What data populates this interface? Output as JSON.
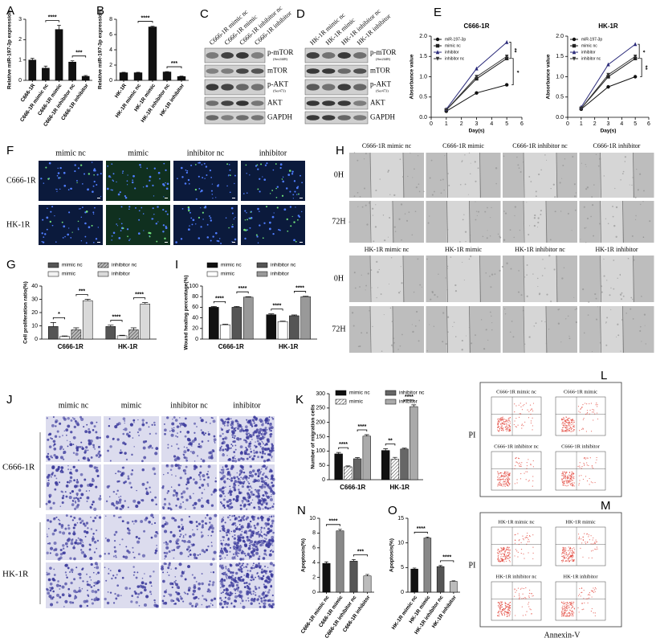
{
  "chart_data": [
    {
      "panel": "A",
      "type": "bar",
      "y_label": "Relative miR-197-3p expression",
      "categories": [
        "C666-1R",
        "C666-1R mimic nc",
        "C666-1R mimic",
        "C666-1R inhibitor nc",
        "C666-1R inhibitor"
      ],
      "values": [
        1.0,
        0.6,
        2.5,
        0.9,
        0.2
      ],
      "errors": [
        0.08,
        0.1,
        0.2,
        0.06,
        0.04
      ],
      "color": "#111111",
      "ylim": [
        0,
        3
      ],
      "yticks": [
        0,
        1,
        2,
        3
      ],
      "annotations": [
        "****",
        "***"
      ]
    },
    {
      "panel": "B",
      "type": "bar",
      "y_label": "Relative miR-197-3p expression",
      "categories": [
        "HK-1R",
        "HK-1R mimic nc",
        "HK-1R mimic",
        "HK-1R inhibitor nc",
        "HK-1R inhibitor"
      ],
      "values": [
        1.0,
        1.0,
        7.0,
        1.1,
        0.5
      ],
      "errors": [
        0.05,
        0.05,
        0.1,
        0.05,
        0.05
      ],
      "color": "#111111",
      "ylim": [
        0,
        8
      ],
      "yticks": [
        0,
        2,
        4,
        6,
        8
      ],
      "annotations": [
        "****",
        "***"
      ]
    },
    {
      "panel": "E",
      "type": "line",
      "title": "C666-1R",
      "x_label": "Day(s)",
      "y_label": "Absorbance value",
      "x": [
        1,
        3,
        5
      ],
      "xlim": [
        0,
        6
      ],
      "xticks": [
        0,
        1,
        2,
        3,
        4,
        5,
        6
      ],
      "ylim": [
        0,
        2
      ],
      "yticks": [
        {
          "value": 0,
          "label": "0.0"
        },
        {
          "value": 0.5,
          "label": "0.5"
        },
        {
          "value": 1,
          "label": "1.0"
        },
        {
          "value": 1.5,
          "label": "1.5"
        },
        {
          "value": 2,
          "label": "2.0"
        }
      ],
      "series": [
        {
          "name": "miR-197-3p",
          "color": "#111111",
          "marker": "circle",
          "values": [
            0.15,
            0.6,
            0.8
          ]
        },
        {
          "name": "mimic nc",
          "color": "#222222",
          "marker": "square",
          "values": [
            0.18,
            0.95,
            1.45
          ]
        },
        {
          "name": "inhibitor",
          "color": "#2b2b7a",
          "marker": "triangle",
          "values": [
            0.2,
            1.2,
            1.85
          ]
        },
        {
          "name": "inhibitor nc",
          "color": "#333333",
          "marker": "triangle-down",
          "values": [
            0.18,
            1.0,
            1.5
          ]
        }
      ],
      "annotations": [
        "**",
        "*"
      ]
    },
    {
      "type": "line",
      "title": "HK-1R",
      "x_label": "Day(s)",
      "y_label": "Absorbance value",
      "x": [
        1,
        3,
        5
      ],
      "xlim": [
        0,
        6
      ],
      "xticks": [
        0,
        1,
        2,
        3,
        4,
        5,
        6
      ],
      "ylim": [
        0,
        2
      ],
      "yticks": [
        {
          "value": 0,
          "label": "0.0"
        },
        {
          "value": 0.5,
          "label": "0.5"
        },
        {
          "value": 1,
          "label": "1.0"
        },
        {
          "value": 1.5,
          "label": "1.5"
        },
        {
          "value": 2,
          "label": "2.0"
        }
      ],
      "series": [
        {
          "name": "miR-197-3p",
          "color": "#111111",
          "marker": "circle",
          "values": [
            0.2,
            0.75,
            1.0
          ]
        },
        {
          "name": "mimic nc",
          "color": "#222222",
          "marker": "square",
          "values": [
            0.22,
            1.0,
            1.45
          ]
        },
        {
          "name": "inhibitor",
          "color": "#2b2b7a",
          "marker": "triangle",
          "values": [
            0.25,
            1.3,
            1.8
          ]
        },
        {
          "name": "inhibitor nc",
          "color": "#333333",
          "marker": "triangle-down",
          "values": [
            0.22,
            1.05,
            1.5
          ]
        }
      ],
      "annotations": [
        "*",
        "**"
      ]
    },
    {
      "panel": "G",
      "type": "grouped_bar",
      "y_label": "Cell proliferation ratio(%)",
      "categories": [
        "C666-1R",
        "HK-1R"
      ],
      "series": [
        {
          "name": "mimic nc",
          "color": "#555555",
          "values": [
            9.5,
            9.5
          ],
          "errors": [
            3,
            1
          ]
        },
        {
          "name": "mimic",
          "color": "#f2f2f2",
          "values": [
            2,
            2.5
          ],
          "errors": [
            0.4,
            0.4
          ]
        },
        {
          "name": "inhibitor nc",
          "color": "#bbbbbb",
          "hatch": true,
          "values": [
            7,
            7
          ],
          "errors": [
            1.5,
            1.5
          ]
        },
        {
          "name": "inhibitor",
          "color": "#d9d9d9",
          "values": [
            29,
            26.5
          ],
          "errors": [
            1,
            1
          ]
        }
      ],
      "ylim": [
        0,
        40
      ],
      "yticks": [
        0,
        10,
        20,
        30,
        40
      ],
      "annotations": [
        "*",
        "***",
        "****",
        "****"
      ]
    },
    {
      "panel": "I",
      "type": "grouped_bar",
      "y_label": "Wound healing percentage(%)",
      "categories": [
        "C666-1R",
        "HK-1R"
      ],
      "series": [
        {
          "name": "mimic nc",
          "color": "#111111",
          "values": [
            60,
            46
          ],
          "errors": [
            1.5,
            1.5
          ]
        },
        {
          "name": "mimic",
          "color": "#ffffff",
          "values": [
            27,
            33
          ],
          "errors": [
            1,
            1
          ]
        },
        {
          "name": "inhibitor nc",
          "color": "#555555",
          "values": [
            60,
            44
          ],
          "errors": [
            1.5,
            1.5
          ]
        },
        {
          "name": "inhibitor",
          "color": "#999999",
          "values": [
            79,
            80
          ],
          "errors": [
            1,
            1
          ]
        }
      ],
      "ylim": [
        0,
        100
      ],
      "yticks": [
        0,
        20,
        40,
        60,
        80,
        100
      ],
      "annotations": [
        "****",
        "****",
        "****",
        "****"
      ]
    },
    {
      "panel": "K",
      "type": "grouped_bar",
      "y_label": "Number of migration cells",
      "categories": [
        "C666-1R",
        "HK-1R"
      ],
      "series": [
        {
          "name": "mimic nc",
          "color": "#111111",
          "values": [
            90,
            102
          ],
          "errors": [
            5,
            6
          ]
        },
        {
          "name": "mimic",
          "color": "#ffffff",
          "hatch": true,
          "values": [
            45,
            72
          ],
          "errors": [
            3,
            6
          ]
        },
        {
          "name": "inhibitor nc",
          "color": "#666666",
          "values": [
            73,
            107
          ],
          "errors": [
            4,
            3
          ]
        },
        {
          "name": "inhibitor",
          "color": "#aaaaaa",
          "values": [
            152,
            255
          ],
          "errors": [
            5,
            6
          ]
        }
      ],
      "ylim": [
        0,
        300
      ],
      "yticks": [
        0,
        50,
        100,
        150,
        200,
        250,
        300
      ],
      "annotations": [
        "****",
        "****",
        "**",
        "****"
      ]
    },
    {
      "panel": "N",
      "type": "bar",
      "y_label": "Apoptosis(%)",
      "categories": [
        "C666-1R mimic nc",
        "C666-1R mimic",
        "C666-1R inhibitor nc",
        "C666-1R inhibitor"
      ],
      "values": [
        3.9,
        8.3,
        4.2,
        2.2
      ],
      "errors": [
        0.2,
        0.2,
        0.2,
        0.2
      ],
      "colors": [
        "#111111",
        "#888888",
        "#555555",
        "#bbbbbb"
      ],
      "ylim": [
        0,
        10
      ],
      "yticks": [
        0,
        2,
        4,
        6,
        8,
        10
      ],
      "annotations": [
        "****",
        "***"
      ]
    },
    {
      "panel": "O",
      "type": "bar",
      "y_label": "Apoptosis(%)",
      "categories": [
        "HK-1R mimic nc",
        "HK-1R mimic",
        "HK-1R inhibitor nc",
        "HK-1R inhibitor"
      ],
      "values": [
        4.7,
        11.0,
        5.2,
        2.2
      ],
      "errors": [
        0.2,
        0.2,
        0.2,
        0.1
      ],
      "colors": [
        "#111111",
        "#888888",
        "#555555",
        "#bbbbbb"
      ],
      "ylim": [
        0,
        15
      ],
      "yticks": [
        0,
        5,
        10,
        15
      ],
      "annotations": [
        "****",
        "****"
      ]
    }
  ],
  "figure": {
    "C": {
      "letter": "C",
      "lanes": [
        "C666-1R mimic nc",
        "C666-1R mimic",
        "C666-1R inhibitor nc",
        "C666-1R inhibitor"
      ],
      "bands": [
        {
          "name": "p-mTOR",
          "site": "(Ser2448)"
        },
        {
          "name": "mTOR"
        },
        {
          "name": "p-AKT",
          "site": "(Ser473)"
        },
        {
          "name": "AKT"
        },
        {
          "name": "GAPDH"
        }
      ]
    },
    "D": {
      "letter": "D",
      "lanes": [
        "HK-1R mimic nc",
        "HK-1R mimic",
        "HK-1R inhibitor nc",
        "HK-1R inhibitor"
      ],
      "bands": [
        {
          "name": "p-mTOR",
          "site": "(Ser2448)"
        },
        {
          "name": "mTOR"
        },
        {
          "name": "p-AKT",
          "site": "(Ser473)"
        },
        {
          "name": "AKT"
        },
        {
          "name": "GAPDH"
        }
      ]
    },
    "F": {
      "letter": "F",
      "columns": [
        "mimic nc",
        "mimic",
        "inhibitor nc",
        "inhibitor"
      ],
      "rows": [
        "C666-1R",
        "HK-1R"
      ]
    },
    "H": {
      "letter": "H",
      "sets": [
        {
          "columns": [
            "C666-1R mimic nc",
            "C666-1R mimic",
            "C666-1R inhibitor nc",
            "C666-1R inhibitor"
          ],
          "rows": [
            "0H",
            "72H"
          ]
        },
        {
          "columns": [
            "HK-1R mimic nc",
            "HK-1R mimic",
            "HK-1R inhibitor nc",
            "HK-1R inhibitor"
          ],
          "rows": [
            "0H",
            "72H"
          ]
        }
      ]
    },
    "J": {
      "letter": "J",
      "columns": [
        "mimic nc",
        "mimic",
        "inhibitor nc",
        "inhibitor"
      ],
      "rows": [
        "C666-1R",
        "HK-1R"
      ]
    },
    "L": {
      "letter": "L",
      "plots": [
        "C666-1R mimic nc",
        "C666-1R mimic",
        "C666-1R inhibitor nc",
        "C666-1R inhibitor"
      ],
      "y_label": "PI"
    },
    "M": {
      "letter": "M",
      "plots": [
        "HK-1R mimic nc",
        "HK-1R mimic",
        "HK-1R inhibitor nc",
        "HK-1R inhibitor"
      ],
      "y_label": "PI",
      "x_label": "Annexin-V"
    }
  }
}
